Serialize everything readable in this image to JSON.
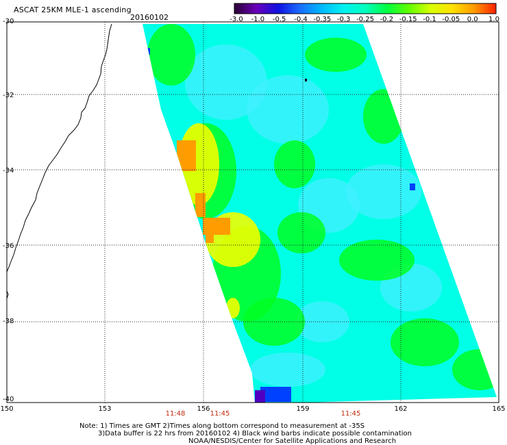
{
  "header": {
    "title": "ASCAT 25KM MLE-1 ascending",
    "date": "20160102"
  },
  "colorbar": {
    "labels": [
      "-3.0",
      "-1.0",
      "-0.5",
      "-0.4",
      "-0.35",
      "-0.3",
      "-0.25",
      "-0.2",
      "-0.15",
      "-0.1",
      "-0.05",
      "0.0",
      "1.0"
    ],
    "colors": [
      "#2a0033",
      "#6a00b8",
      "#1010e0",
      "#1a6cff",
      "#00b8ff",
      "#00f0f0",
      "#00ffc0",
      "#00ff40",
      "#60ff00",
      "#d8ff00",
      "#ffe000",
      "#ff9a00",
      "#ff2000"
    ]
  },
  "map": {
    "lat_labels": [
      "-30",
      "-32",
      "-34",
      "-36",
      "-38",
      "-40"
    ],
    "lon_labels": [
      "150",
      "153",
      "156",
      "159",
      "162",
      "165"
    ],
    "time_labels": [
      "11:48",
      "11:45",
      "11:45"
    ],
    "swath_colors": {
      "background": "#00ffe6",
      "cyan_light": "#40f0ff",
      "green": "#00ff22",
      "light_green": "#80ff40",
      "yellow": "#f0ff00",
      "orange": "#ff9c00",
      "blue": "#0040ff",
      "purple": "#5000c0"
    }
  },
  "notes": {
    "line1": "Note: 1) Times are GMT 2)Times along bottom correspond to measurement at -35S",
    "line2": "3)Data buffer is 22 hrs from 20160102 4) Black wind barbs indicate possible contamination",
    "line3": "NOAA/NESDIS/Center for Satellite Applications and Research"
  }
}
